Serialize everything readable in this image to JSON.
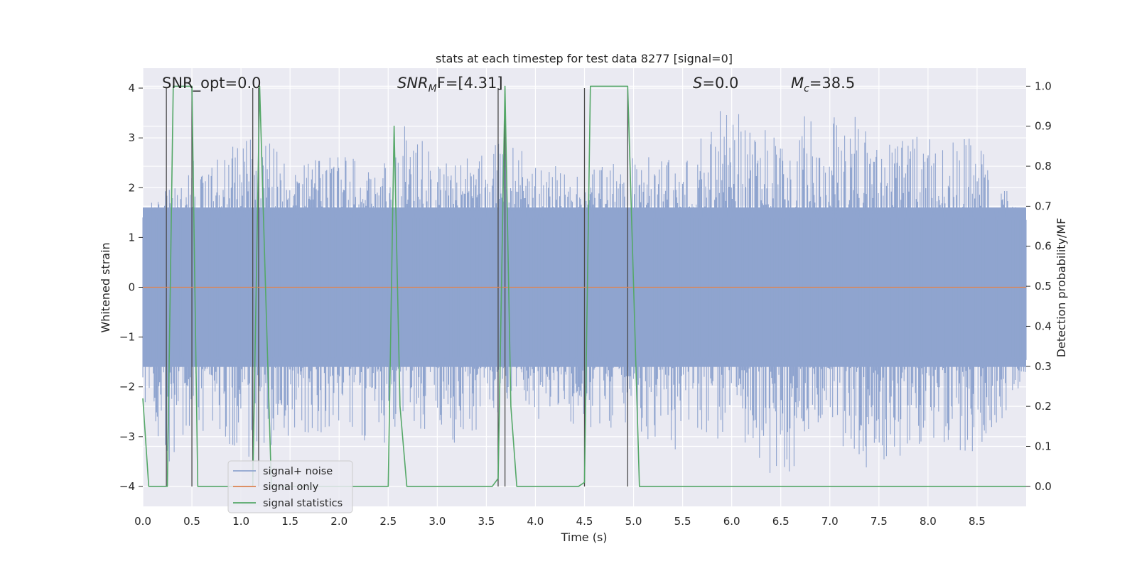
{
  "chart_data": {
    "type": "line",
    "title": "stats at each timestep for test data 8277 [signal=0]",
    "xlabel": "Time (s)",
    "ylabel": "Whitened strain",
    "ylabel_right": "Detection probability/MF",
    "xlim": [
      0,
      9.0
    ],
    "ylim": [
      -4.4,
      4.4
    ],
    "ylim_right": [
      -0.05,
      1.045
    ],
    "x_ticks": [
      "0.0",
      "0.5",
      "1.0",
      "1.5",
      "2.0",
      "2.5",
      "3.0",
      "3.5",
      "4.0",
      "4.5",
      "5.0",
      "5.5",
      "6.0",
      "6.5",
      "7.0",
      "7.5",
      "8.0",
      "8.5"
    ],
    "y_ticks": [
      "−4",
      "−3",
      "−2",
      "−1",
      "0",
      "1",
      "2",
      "3",
      "4"
    ],
    "y_ticks_right": [
      "0.0",
      "0.1",
      "0.2",
      "0.3",
      "0.4",
      "0.5",
      "0.6",
      "0.7",
      "0.8",
      "0.9",
      "1.0"
    ],
    "grid": true,
    "legend_position": "lower-left",
    "annotations": {
      "snr_opt": "SNR_opt=0.0",
      "snr_mf_sym": "SNR",
      "snr_mf_sub": "M",
      "snr_mf_rest": "F=[4.31]",
      "s_sym": "S",
      "s_rest": "=0.0",
      "mc_sym": "M",
      "mc_sub": "c",
      "mc_rest": "=38.5"
    },
    "series": [
      {
        "name": "signal+ noise",
        "color": "#8fa4cf",
        "note_envelope_upper_approx": [
          [
            0.0,
            1.5
          ],
          [
            0.2,
            2.0
          ],
          [
            0.5,
            2.6
          ],
          [
            0.8,
            2.6
          ],
          [
            1.15,
            3.3
          ],
          [
            1.5,
            2.4
          ],
          [
            2.0,
            2.7
          ],
          [
            2.5,
            2.5
          ],
          [
            2.7,
            3.5
          ],
          [
            3.0,
            2.6
          ],
          [
            3.5,
            2.7
          ],
          [
            3.65,
            3.4
          ],
          [
            4.0,
            2.6
          ],
          [
            4.5,
            2.4
          ],
          [
            5.0,
            2.7
          ],
          [
            5.5,
            2.5
          ],
          [
            5.9,
            3.8
          ],
          [
            6.5,
            3.0
          ],
          [
            7.0,
            4.0
          ],
          [
            7.5,
            2.9
          ],
          [
            8.0,
            3.1
          ],
          [
            8.5,
            3.0
          ],
          [
            9.0,
            1.3
          ]
        ],
        "note_envelope_lower_approx": [
          [
            0.0,
            -2.2
          ],
          [
            0.2,
            -3.7
          ],
          [
            0.5,
            -2.9
          ],
          [
            0.8,
            -3.0
          ],
          [
            1.15,
            -3.7
          ],
          [
            1.5,
            -3.2
          ],
          [
            2.0,
            -2.8
          ],
          [
            2.35,
            -3.2
          ],
          [
            3.0,
            -2.8
          ],
          [
            3.15,
            -3.3
          ],
          [
            3.5,
            -2.7
          ],
          [
            4.0,
            -2.7
          ],
          [
            4.5,
            -2.8
          ],
          [
            5.0,
            -3.0
          ],
          [
            5.5,
            -3.3
          ],
          [
            6.0,
            -3.0
          ],
          [
            6.45,
            -3.95
          ],
          [
            7.0,
            -3.0
          ],
          [
            7.5,
            -4.0
          ],
          [
            8.0,
            -3.0
          ],
          [
            8.5,
            -3.6
          ],
          [
            9.0,
            -1.9
          ]
        ]
      },
      {
        "name": "signal only",
        "color": "#dd8452",
        "x": [
          0.0,
          9.0
        ],
        "y": [
          0.0,
          0.0
        ]
      },
      {
        "name": "signal statistics",
        "color": "#55a868",
        "axis": "right",
        "x": [
          0.0,
          0.06,
          0.12,
          0.25,
          0.31,
          0.37,
          0.44,
          0.5,
          0.56,
          0.62,
          1.12,
          1.19,
          1.25,
          1.31,
          1.37,
          1.44,
          1.5,
          1.56,
          2.5,
          2.56,
          2.62,
          2.69,
          3.56,
          3.62,
          3.69,
          3.75,
          3.81,
          4.44,
          4.5,
          4.56,
          4.62,
          4.94,
          5.0,
          5.06,
          5.12,
          9.0
        ],
        "y": [
          0.22,
          0.0,
          0.0,
          0.0,
          1.0,
          1.0,
          1.0,
          1.0,
          0.0,
          0.0,
          0.0,
          1.0,
          0.5,
          0.0,
          0.0,
          0.0,
          0.0,
          0.0,
          0.0,
          0.9,
          0.2,
          0.0,
          0.0,
          0.02,
          1.0,
          0.2,
          0.0,
          0.0,
          0.01,
          1.0,
          1.0,
          1.0,
          0.5,
          0.0,
          0.0,
          0.0
        ]
      }
    ],
    "vertical_markers_x": [
      0.24,
      0.5,
      1.12,
      1.18,
      3.62,
      3.69,
      4.5,
      4.94
    ]
  }
}
